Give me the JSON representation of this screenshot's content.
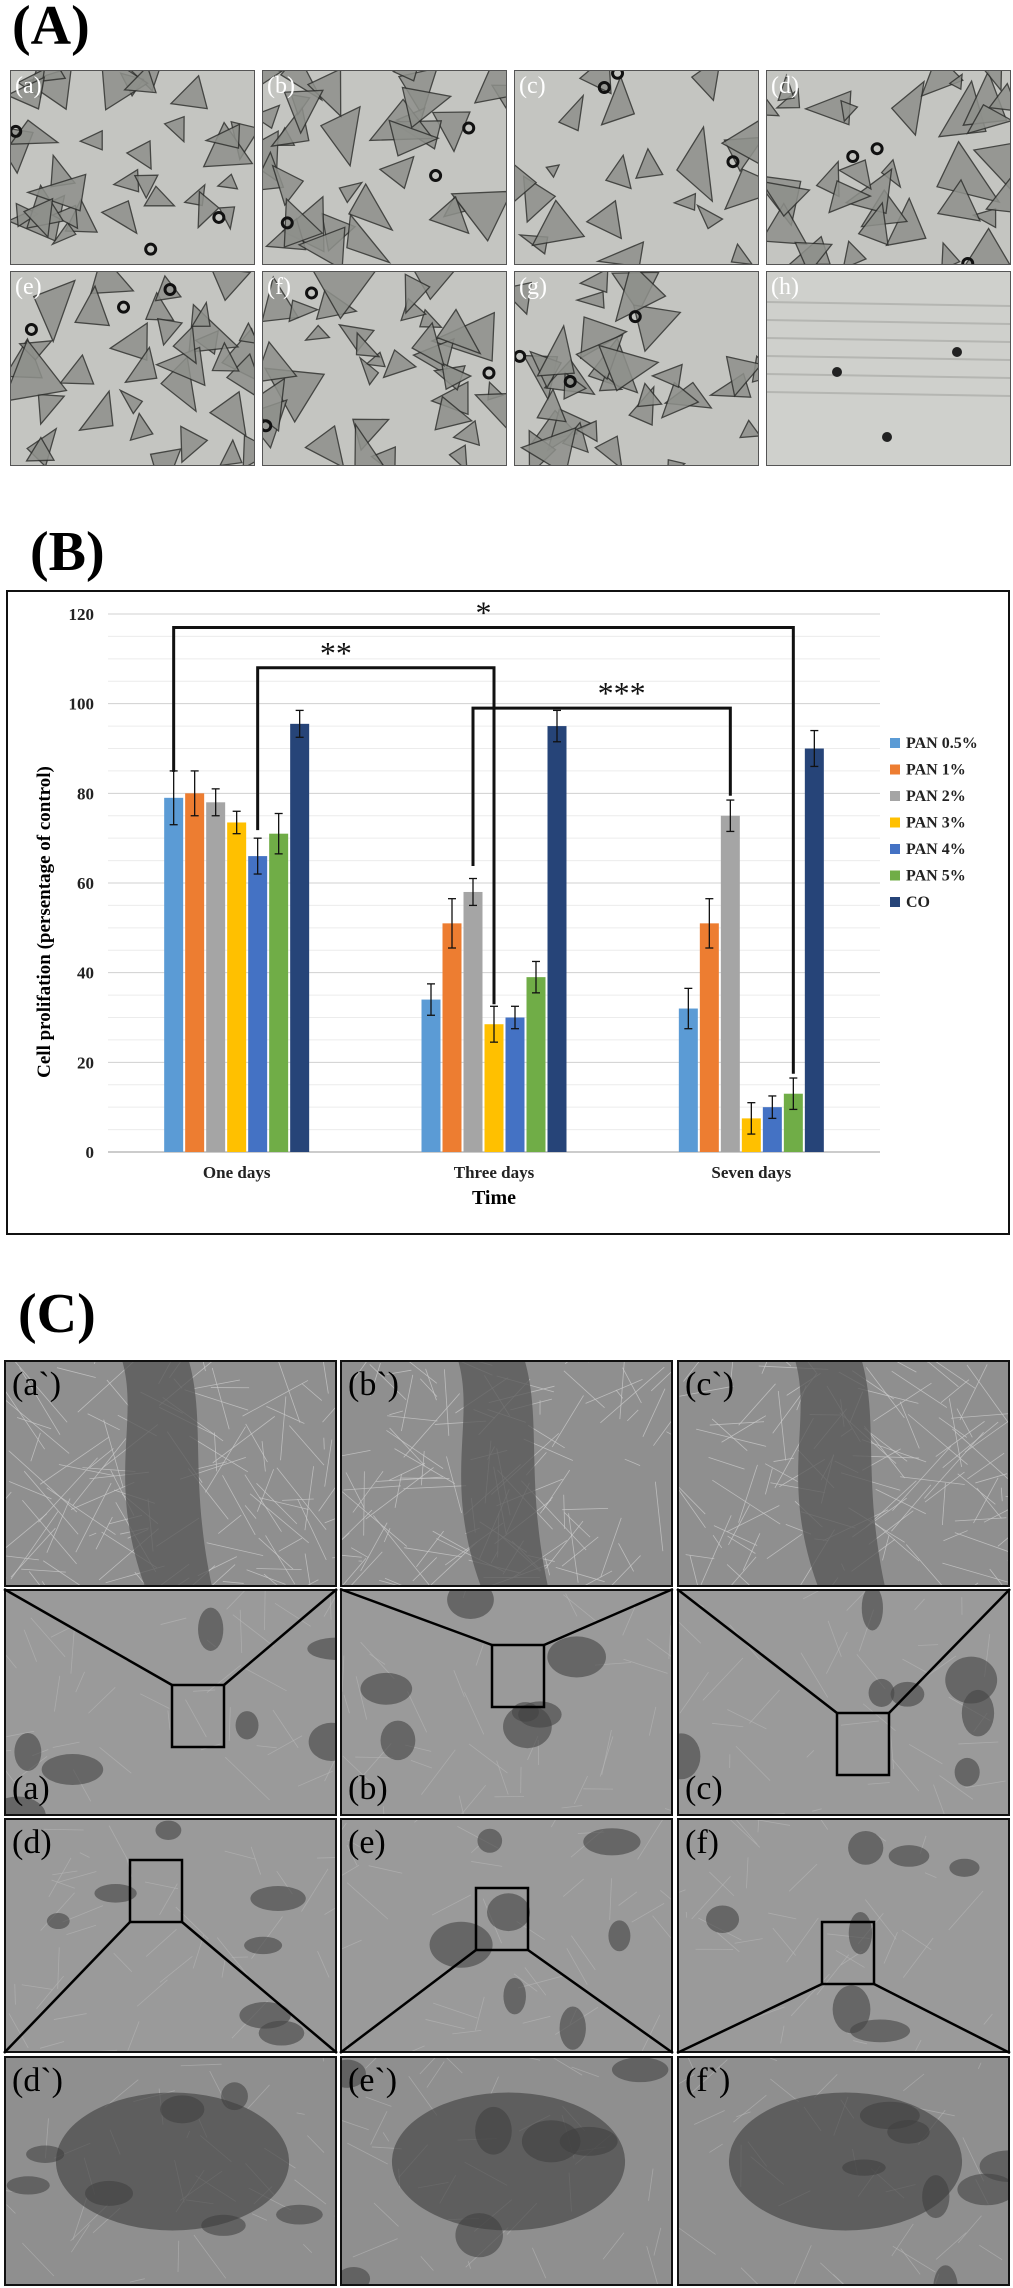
{
  "panels": {
    "a_label": "(A)",
    "b_label": "(B)",
    "c_label": "(C)"
  },
  "panel_a_tiles": [
    "(a)",
    "(b)",
    "(c)",
    "(d)",
    "(e)",
    "(f)",
    "(g)",
    "(h)"
  ],
  "panel_c_tiles": {
    "row1": [
      "(a`)",
      "(b`)",
      "(c`)"
    ],
    "row2": [
      "(a)",
      "(b)",
      "(c)"
    ],
    "row3": [
      "(d)",
      "(e)",
      "(f)"
    ],
    "row4": [
      "(d`)",
      "(e`)",
      "(f`)"
    ]
  },
  "chart_data": {
    "type": "bar",
    "title": "",
    "xlabel": "Time",
    "ylabel": "Cell prolifation (persentage of control)",
    "categories": [
      "One days",
      "Three days",
      "Seven days"
    ],
    "ylim": [
      0,
      120
    ],
    "yticks": [
      "0",
      "20",
      "40",
      "60",
      "80",
      "100",
      "120"
    ],
    "grid": true,
    "legend_position": "right",
    "series": [
      {
        "name": "PAN 0.5%",
        "color": "#5b9bd5",
        "values": [
          79,
          34,
          32
        ],
        "errors": [
          6,
          3.5,
          4.5
        ]
      },
      {
        "name": "PAN 1%",
        "color": "#ed7d31",
        "values": [
          80,
          51,
          51
        ],
        "errors": [
          5,
          5.5,
          5.5
        ]
      },
      {
        "name": "PAN 2%",
        "color": "#a5a5a5",
        "values": [
          78,
          58,
          75
        ],
        "errors": [
          3,
          3,
          3.5
        ]
      },
      {
        "name": "PAN 3%",
        "color": "#ffc000",
        "values": [
          73.5,
          28.5,
          7.5
        ],
        "errors": [
          2.5,
          4,
          3.5
        ]
      },
      {
        "name": "PAN 4%",
        "color": "#4472c4",
        "values": [
          66,
          30,
          10
        ],
        "errors": [
          4,
          2.5,
          2.5
        ]
      },
      {
        "name": "PAN 5%",
        "color": "#70ad47",
        "values": [
          71,
          39,
          13
        ],
        "errors": [
          4.5,
          3.5,
          3.5
        ]
      },
      {
        "name": "CO",
        "color": "#264478",
        "values": [
          95.5,
          95,
          90
        ],
        "errors": [
          3,
          3.5,
          4
        ]
      }
    ],
    "annotations": [
      "*",
      "**",
      "***"
    ]
  }
}
